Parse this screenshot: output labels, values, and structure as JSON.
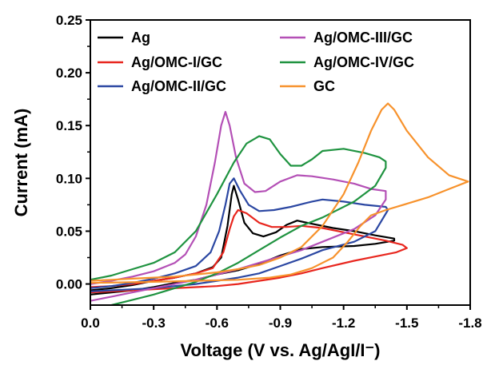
{
  "chart_data": {
    "type": "line",
    "xlabel": "Voltage (V vs. Ag/AgI/I⁻)",
    "ylabel": "Current (mA)",
    "xlim": [
      0.0,
      -1.8
    ],
    "ylim": [
      -0.02,
      0.25
    ],
    "x_ticks": [
      0.0,
      -0.3,
      -0.6,
      -0.9,
      -1.2,
      -1.5,
      -1.8
    ],
    "x_tick_labels": [
      "0.0",
      "-0.3",
      "-0.6",
      "-0.9",
      "-1.2",
      "-1.5",
      "-1.8"
    ],
    "y_ticks": [
      0.0,
      0.05,
      0.1,
      0.15,
      0.2,
      0.25
    ],
    "y_tick_labels": [
      "0.00",
      "0.05",
      "0.10",
      "0.15",
      "0.20",
      "0.25"
    ],
    "legend_placement": "top-left",
    "grid": false,
    "series": [
      {
        "name": "Ag",
        "color": "#000000",
        "points": [
          [
            0.0,
            -0.006
          ],
          [
            -0.1,
            -0.004
          ],
          [
            -0.2,
            -0.001
          ],
          [
            -0.3,
            0.003
          ],
          [
            -0.4,
            0.006
          ],
          [
            -0.5,
            0.01
          ],
          [
            -0.58,
            0.016
          ],
          [
            -0.62,
            0.025
          ],
          [
            -0.65,
            0.055
          ],
          [
            -0.67,
            0.085
          ],
          [
            -0.68,
            0.093
          ],
          [
            -0.7,
            0.08
          ],
          [
            -0.73,
            0.058
          ],
          [
            -0.77,
            0.048
          ],
          [
            -0.82,
            0.045
          ],
          [
            -0.88,
            0.049
          ],
          [
            -0.93,
            0.056
          ],
          [
            -0.98,
            0.06
          ],
          [
            -1.05,
            0.057
          ],
          [
            -1.15,
            0.053
          ],
          [
            -1.25,
            0.05
          ],
          [
            -1.35,
            0.046
          ],
          [
            -1.44,
            0.043
          ],
          [
            -1.44,
            0.041
          ],
          [
            -1.35,
            0.038
          ],
          [
            -1.25,
            0.036
          ],
          [
            -1.1,
            0.035
          ],
          [
            -1.0,
            0.033
          ],
          [
            -0.9,
            0.027
          ],
          [
            -0.8,
            0.019
          ],
          [
            -0.7,
            0.013
          ],
          [
            -0.6,
            0.009
          ],
          [
            -0.5,
            0.004
          ],
          [
            -0.4,
            0.001
          ],
          [
            -0.3,
            -0.003
          ],
          [
            -0.2,
            -0.006
          ],
          [
            -0.1,
            -0.008
          ],
          [
            0.0,
            -0.01
          ]
        ]
      },
      {
        "name": "Ag/OMC-I/GC",
        "color": "#e8261e",
        "points": [
          [
            0.0,
            -0.003
          ],
          [
            -0.1,
            -0.002
          ],
          [
            -0.2,
            0.0
          ],
          [
            -0.3,
            0.003
          ],
          [
            -0.4,
            0.006
          ],
          [
            -0.5,
            0.01
          ],
          [
            -0.58,
            0.015
          ],
          [
            -0.63,
            0.03
          ],
          [
            -0.66,
            0.052
          ],
          [
            -0.68,
            0.064
          ],
          [
            -0.7,
            0.07
          ],
          [
            -0.74,
            0.067
          ],
          [
            -0.8,
            0.058
          ],
          [
            -0.86,
            0.054
          ],
          [
            -0.93,
            0.054
          ],
          [
            -1.0,
            0.055
          ],
          [
            -1.1,
            0.053
          ],
          [
            -1.2,
            0.049
          ],
          [
            -1.3,
            0.045
          ],
          [
            -1.4,
            0.041
          ],
          [
            -1.48,
            0.037
          ],
          [
            -1.5,
            0.034
          ],
          [
            -1.45,
            0.03
          ],
          [
            -1.35,
            0.026
          ],
          [
            -1.25,
            0.022
          ],
          [
            -1.1,
            0.015
          ],
          [
            -1.0,
            0.01
          ],
          [
            -0.9,
            0.006
          ],
          [
            -0.8,
            0.003
          ],
          [
            -0.7,
            0.0
          ],
          [
            -0.6,
            -0.002
          ],
          [
            -0.5,
            -0.003
          ],
          [
            -0.4,
            -0.004
          ],
          [
            -0.3,
            -0.005
          ],
          [
            -0.2,
            -0.006
          ],
          [
            -0.1,
            -0.007
          ],
          [
            0.0,
            -0.008
          ]
        ]
      },
      {
        "name": "Ag/OMC-II/GC",
        "color": "#2b47a2",
        "points": [
          [
            0.0,
            -0.004
          ],
          [
            -0.1,
            -0.002
          ],
          [
            -0.2,
            0.001
          ],
          [
            -0.3,
            0.005
          ],
          [
            -0.4,
            0.01
          ],
          [
            -0.5,
            0.017
          ],
          [
            -0.57,
            0.03
          ],
          [
            -0.61,
            0.05
          ],
          [
            -0.64,
            0.075
          ],
          [
            -0.66,
            0.095
          ],
          [
            -0.68,
            0.1
          ],
          [
            -0.71,
            0.088
          ],
          [
            -0.75,
            0.075
          ],
          [
            -0.8,
            0.069
          ],
          [
            -0.87,
            0.07
          ],
          [
            -0.95,
            0.073
          ],
          [
            -1.05,
            0.078
          ],
          [
            -1.1,
            0.08
          ],
          [
            -1.2,
            0.078
          ],
          [
            -1.3,
            0.075
          ],
          [
            -1.4,
            0.073
          ],
          [
            -1.41,
            0.07
          ],
          [
            -1.35,
            0.05
          ],
          [
            -1.25,
            0.04
          ],
          [
            -1.1,
            0.032
          ],
          [
            -1.0,
            0.024
          ],
          [
            -0.9,
            0.017
          ],
          [
            -0.8,
            0.01
          ],
          [
            -0.7,
            0.006
          ],
          [
            -0.6,
            0.003
          ],
          [
            -0.5,
            0.0
          ],
          [
            -0.4,
            -0.002
          ],
          [
            -0.3,
            -0.004
          ],
          [
            -0.2,
            -0.005
          ],
          [
            -0.1,
            -0.006
          ],
          [
            0.0,
            -0.007
          ]
        ]
      },
      {
        "name": "Ag/OMC-III/GC",
        "color": "#b450b6",
        "points": [
          [
            0.0,
            0.0
          ],
          [
            -0.1,
            0.003
          ],
          [
            -0.2,
            0.007
          ],
          [
            -0.3,
            0.012
          ],
          [
            -0.4,
            0.02
          ],
          [
            -0.45,
            0.028
          ],
          [
            -0.5,
            0.045
          ],
          [
            -0.55,
            0.075
          ],
          [
            -0.59,
            0.115
          ],
          [
            -0.62,
            0.15
          ],
          [
            -0.64,
            0.163
          ],
          [
            -0.66,
            0.15
          ],
          [
            -0.69,
            0.12
          ],
          [
            -0.73,
            0.095
          ],
          [
            -0.78,
            0.087
          ],
          [
            -0.83,
            0.088
          ],
          [
            -0.9,
            0.097
          ],
          [
            -0.98,
            0.103
          ],
          [
            -1.05,
            0.102
          ],
          [
            -1.15,
            0.099
          ],
          [
            -1.25,
            0.095
          ],
          [
            -1.33,
            0.09
          ],
          [
            -1.4,
            0.088
          ],
          [
            -1.4,
            0.08
          ],
          [
            -1.35,
            0.065
          ],
          [
            -1.25,
            0.052
          ],
          [
            -1.1,
            0.04
          ],
          [
            -1.0,
            0.032
          ],
          [
            -0.9,
            0.026
          ],
          [
            -0.8,
            0.02
          ],
          [
            -0.7,
            0.014
          ],
          [
            -0.6,
            0.009
          ],
          [
            -0.5,
            0.004
          ],
          [
            -0.4,
            0.0
          ],
          [
            -0.3,
            -0.004
          ],
          [
            -0.2,
            -0.008
          ],
          [
            -0.1,
            -0.012
          ],
          [
            0.0,
            -0.016
          ]
        ]
      },
      {
        "name": "Ag/OMC-IV/GC",
        "color": "#1f9340",
        "points": [
          [
            0.0,
            0.004
          ],
          [
            -0.1,
            0.008
          ],
          [
            -0.2,
            0.014
          ],
          [
            -0.3,
            0.02
          ],
          [
            -0.4,
            0.03
          ],
          [
            -0.5,
            0.05
          ],
          [
            -0.6,
            0.085
          ],
          [
            -0.68,
            0.115
          ],
          [
            -0.74,
            0.133
          ],
          [
            -0.8,
            0.14
          ],
          [
            -0.85,
            0.137
          ],
          [
            -0.9,
            0.123
          ],
          [
            -0.95,
            0.112
          ],
          [
            -1.0,
            0.112
          ],
          [
            -1.05,
            0.118
          ],
          [
            -1.1,
            0.126
          ],
          [
            -1.2,
            0.128
          ],
          [
            -1.3,
            0.124
          ],
          [
            -1.37,
            0.12
          ],
          [
            -1.4,
            0.116
          ],
          [
            -1.4,
            0.11
          ],
          [
            -1.35,
            0.093
          ],
          [
            -1.25,
            0.078
          ],
          [
            -1.1,
            0.063
          ],
          [
            -1.0,
            0.055
          ],
          [
            -0.9,
            0.044
          ],
          [
            -0.8,
            0.032
          ],
          [
            -0.7,
            0.02
          ],
          [
            -0.6,
            0.01
          ],
          [
            -0.5,
            0.002
          ],
          [
            -0.4,
            -0.004
          ],
          [
            -0.3,
            -0.01
          ],
          [
            -0.2,
            -0.015
          ],
          [
            -0.1,
            -0.02
          ],
          [
            -0.05,
            -0.022
          ]
        ]
      },
      {
        "name": "GC",
        "color": "#f7922c",
        "points": [
          [
            0.0,
            0.003
          ],
          [
            -0.1,
            0.004
          ],
          [
            -0.2,
            0.005
          ],
          [
            -0.3,
            0.006
          ],
          [
            -0.4,
            0.007
          ],
          [
            -0.5,
            0.009
          ],
          [
            -0.6,
            0.011
          ],
          [
            -0.7,
            0.014
          ],
          [
            -0.8,
            0.018
          ],
          [
            -0.9,
            0.025
          ],
          [
            -1.0,
            0.035
          ],
          [
            -1.1,
            0.055
          ],
          [
            -1.2,
            0.085
          ],
          [
            -1.27,
            0.115
          ],
          [
            -1.33,
            0.145
          ],
          [
            -1.38,
            0.165
          ],
          [
            -1.41,
            0.171
          ],
          [
            -1.44,
            0.165
          ],
          [
            -1.5,
            0.145
          ],
          [
            -1.6,
            0.12
          ],
          [
            -1.7,
            0.103
          ],
          [
            -1.79,
            0.097
          ],
          [
            -1.7,
            0.09
          ],
          [
            -1.6,
            0.082
          ],
          [
            -1.5,
            0.076
          ],
          [
            -1.4,
            0.07
          ],
          [
            -1.33,
            0.065
          ],
          [
            -1.28,
            0.055
          ],
          [
            -1.22,
            0.04
          ],
          [
            -1.15,
            0.025
          ],
          [
            -1.05,
            0.015
          ],
          [
            -0.95,
            0.009
          ],
          [
            -0.85,
            0.006
          ],
          [
            -0.7,
            0.004
          ],
          [
            -0.5,
            0.003
          ],
          [
            -0.3,
            0.002
          ],
          [
            0.0,
            0.001
          ]
        ]
      }
    ]
  }
}
